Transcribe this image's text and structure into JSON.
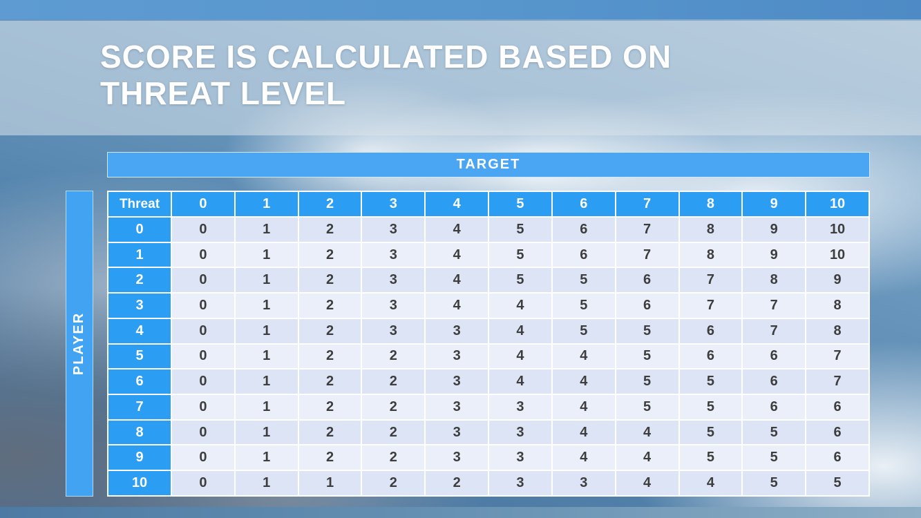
{
  "title": {
    "line1": "SCORE IS CALCULATED BASED ON",
    "line2": "THREAT LEVEL"
  },
  "chart_data": {
    "type": "table",
    "xlabel": "TARGET",
    "ylabel": "PLAYER",
    "corner_label": "Threat",
    "column_headers": [
      "0",
      "1",
      "2",
      "3",
      "4",
      "5",
      "6",
      "7",
      "8",
      "9",
      "10"
    ],
    "row_headers": [
      "0",
      "1",
      "2",
      "3",
      "4",
      "5",
      "6",
      "7",
      "8",
      "9",
      "10"
    ],
    "rows": [
      [
        0,
        1,
        2,
        3,
        4,
        5,
        6,
        7,
        8,
        9,
        10
      ],
      [
        0,
        1,
        2,
        3,
        4,
        5,
        6,
        7,
        8,
        9,
        10
      ],
      [
        0,
        1,
        2,
        3,
        4,
        5,
        5,
        6,
        7,
        8,
        9
      ],
      [
        0,
        1,
        2,
        3,
        4,
        4,
        5,
        6,
        7,
        7,
        8
      ],
      [
        0,
        1,
        2,
        3,
        3,
        4,
        5,
        5,
        6,
        7,
        8
      ],
      [
        0,
        1,
        2,
        2,
        3,
        4,
        4,
        5,
        6,
        6,
        7
      ],
      [
        0,
        1,
        2,
        2,
        3,
        4,
        4,
        5,
        5,
        6,
        7
      ],
      [
        0,
        1,
        2,
        2,
        3,
        3,
        4,
        5,
        5,
        6,
        6
      ],
      [
        0,
        1,
        2,
        2,
        3,
        3,
        4,
        4,
        5,
        5,
        6
      ],
      [
        0,
        1,
        2,
        2,
        3,
        3,
        4,
        4,
        5,
        5,
        6
      ],
      [
        0,
        1,
        1,
        2,
        2,
        3,
        3,
        4,
        4,
        5,
        5
      ]
    ]
  },
  "colors": {
    "accent_blue_header": "#2b9df2",
    "accent_blue_bar": "#4aa6f2",
    "top_strip_blue": "#5795cd",
    "bottom_strip_blue": "#4d7aa4",
    "band_dark": "#dce4f5",
    "band_light": "#eaeffa",
    "title_text": "#ffffff",
    "cell_text": "#3d3d3d"
  }
}
